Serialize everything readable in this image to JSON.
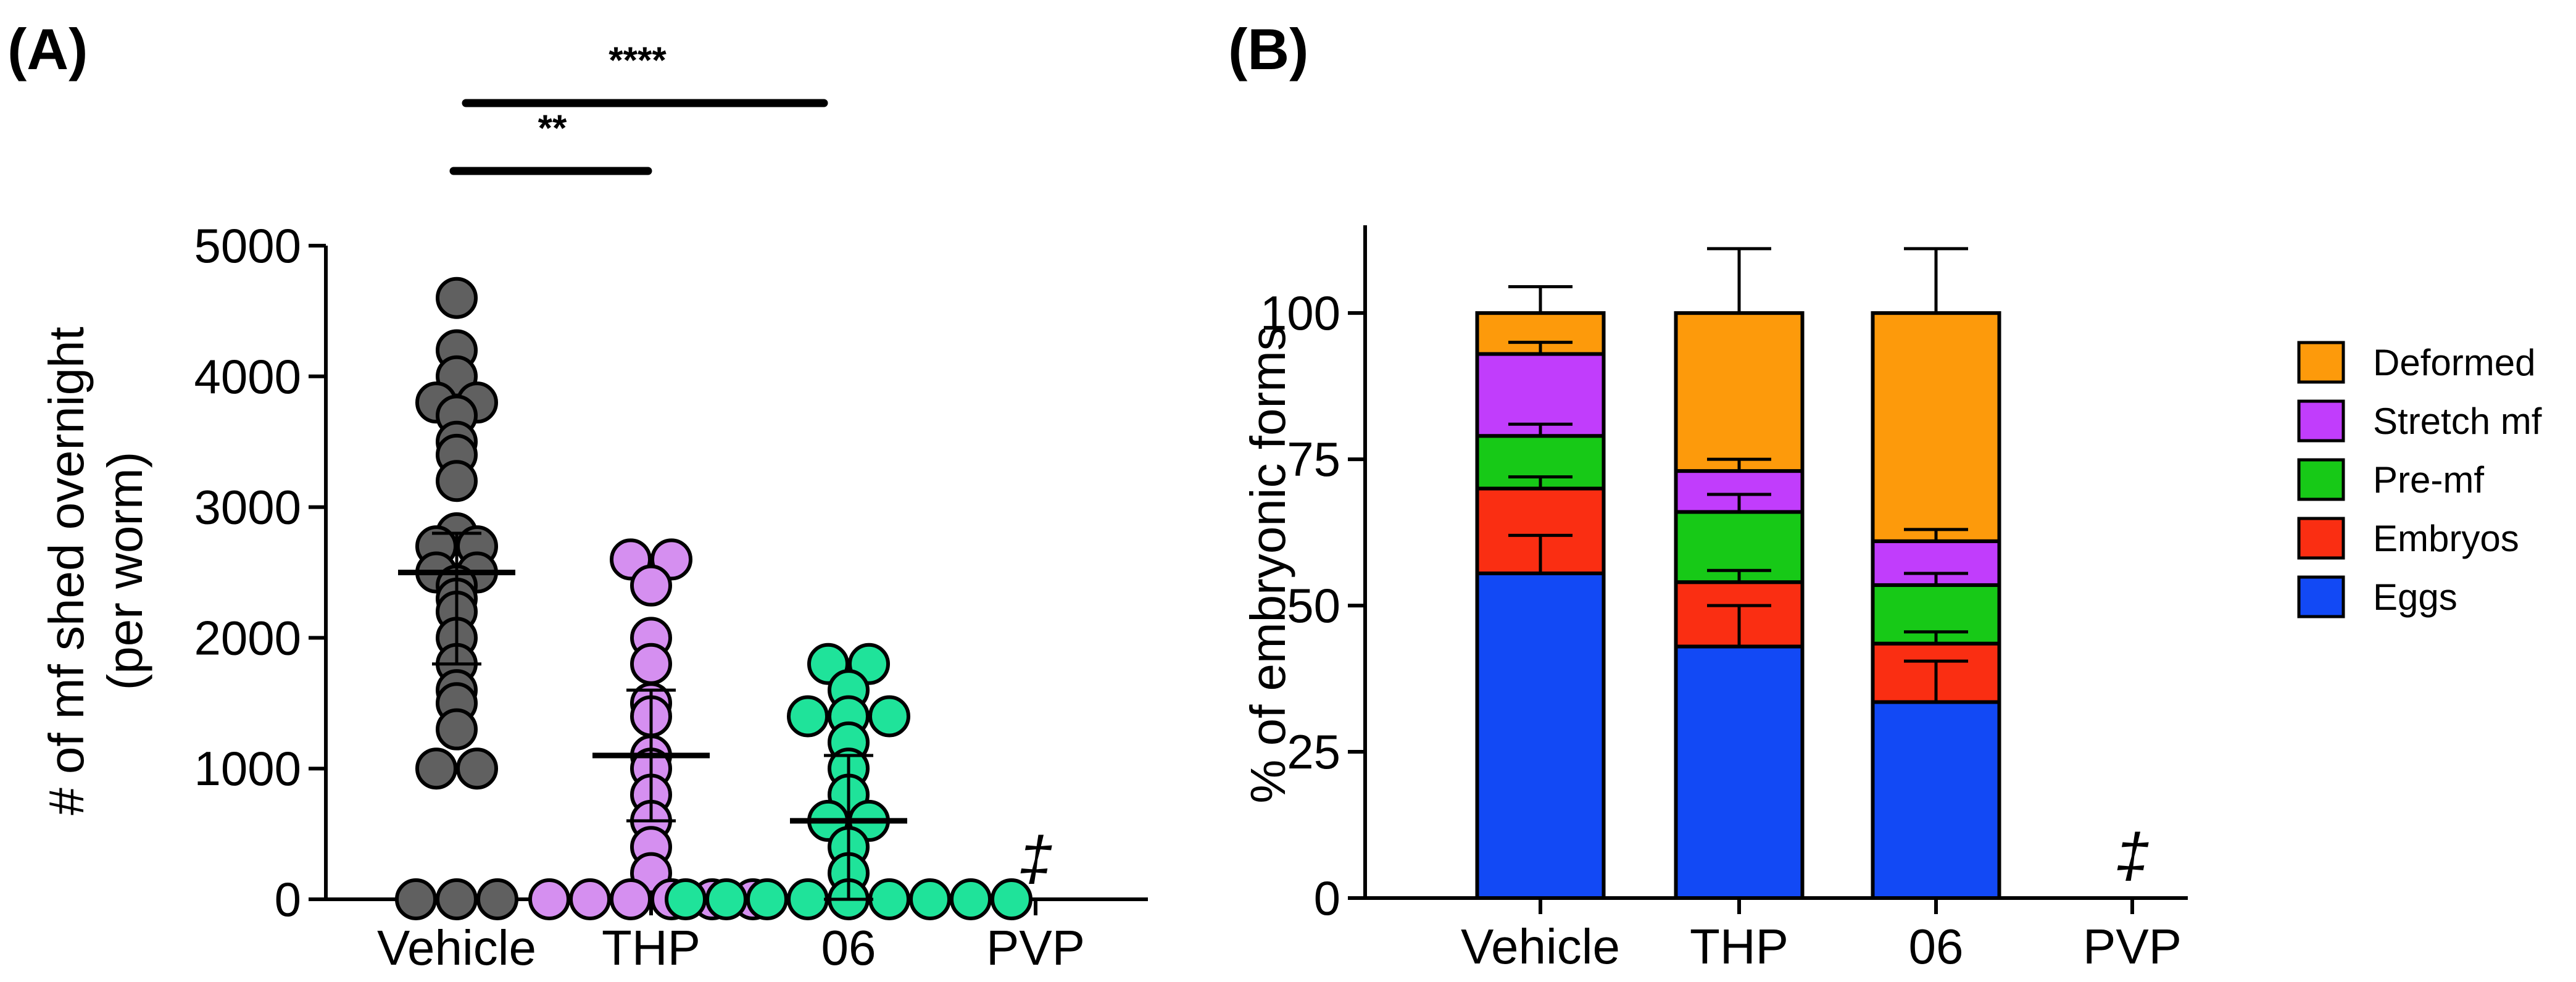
{
  "chart_data": [
    {
      "panel_label": "(A)",
      "type": "scatter",
      "ylabel_line1": "# of mf shed overnight",
      "ylabel_line2": "(per worm)",
      "ylim": [
        0,
        5000
      ],
      "yticks": [
        "0",
        "1000",
        "2000",
        "3000",
        "4000",
        "5000"
      ],
      "categories": [
        "Vehicle",
        "THP",
        "06",
        "PVP"
      ],
      "groups": [
        {
          "name": "Vehicle",
          "color": "#606060",
          "mean": 2500,
          "sd_low": 1800,
          "sd_high": 2800,
          "points": [
            4600,
            4200,
            4000,
            3800,
            3800,
            3700,
            3500,
            3400,
            3200,
            2800,
            2700,
            2700,
            2500,
            2500,
            2400,
            2300,
            2200,
            2000,
            1800,
            1600,
            1500,
            1300,
            1000,
            1000,
            0,
            0,
            0
          ]
        },
        {
          "name": "THP",
          "color": "#d58ff0",
          "mean": 1100,
          "sd_low": 600,
          "sd_high": 1600,
          "points": [
            2600,
            2600,
            2400,
            2000,
            1800,
            1500,
            1400,
            1100,
            1000,
            800,
            600,
            400,
            200,
            0,
            0,
            0,
            0,
            0,
            0
          ]
        },
        {
          "name": "06",
          "color": "#1fe39a",
          "mean": 600,
          "sd_low": 0,
          "sd_high": 1100,
          "points": [
            1800,
            1800,
            1600,
            1400,
            1400,
            1400,
            1200,
            1000,
            800,
            600,
            600,
            400,
            200,
            0,
            0,
            0,
            0,
            0,
            0,
            0,
            0,
            0
          ]
        },
        {
          "name": "PVP",
          "color": "#000000",
          "mean": null,
          "sd_low": null,
          "sd_high": null,
          "points": [],
          "marker": "‡"
        }
      ],
      "significance": [
        {
          "label": "****",
          "from": "Vehicle",
          "to": "06"
        },
        {
          "label": "**",
          "from": "Vehicle",
          "to": "THP"
        }
      ]
    },
    {
      "panel_label": "(B)",
      "type": "bar",
      "stacked": true,
      "ylabel": "% of embryonic forms",
      "ylim": [
        0,
        115
      ],
      "yticks": [
        "0",
        "25",
        "50",
        "75",
        "100"
      ],
      "categories": [
        "Vehicle",
        "THP",
        "06",
        "PVP"
      ],
      "series": [
        {
          "name": "Eggs",
          "color": "#1249f5",
          "values": [
            55.5,
            43,
            33.5,
            0
          ],
          "errors": [
            6.5,
            7,
            7,
            0
          ]
        },
        {
          "name": "Embryos",
          "color": "#fa2e12",
          "values": [
            14.5,
            11,
            10,
            0
          ],
          "errors": [
            2,
            2,
            2,
            0
          ]
        },
        {
          "name": "Pre-mf",
          "color": "#17c917",
          "values": [
            9,
            12,
            10,
            0
          ],
          "errors": [
            2,
            3,
            2,
            0
          ]
        },
        {
          "name": "Stretch mf",
          "color": "#c13dfc",
          "values": [
            14,
            7,
            7.5,
            0
          ],
          "errors": [
            2,
            2,
            2,
            0
          ]
        },
        {
          "name": "Deformed",
          "color": "#fd9a0b",
          "values": [
            7,
            27,
            39,
            0
          ],
          "errors": [
            4.5,
            11,
            11,
            0
          ]
        }
      ],
      "legend_order": [
        "Deformed",
        "Stretch mf",
        "Pre-mf",
        "Embryos",
        "Eggs"
      ],
      "absent_marker": "‡",
      "absent_category": "PVP"
    }
  ]
}
